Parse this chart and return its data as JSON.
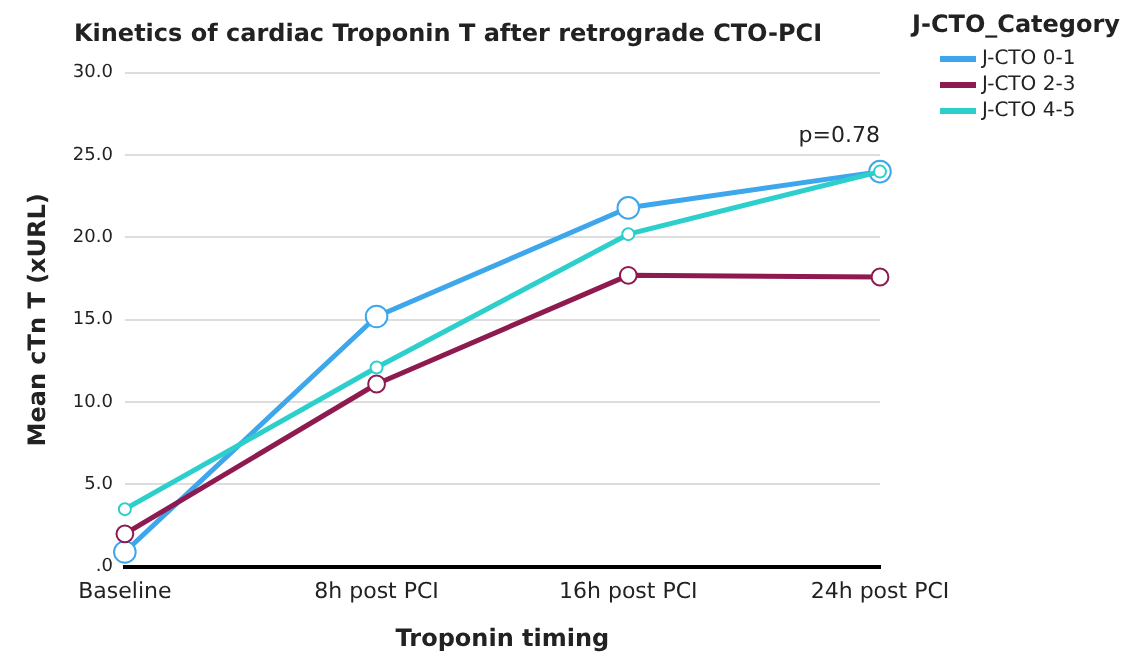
{
  "chart_data": {
    "type": "line",
    "title": "Kinetics of cardiac Troponin T after retrograde CTO-PCI",
    "xlabel": "Troponin timing",
    "ylabel": "Mean cTn T (xURL)",
    "legend_title": "J-CTO_Category",
    "categories": [
      "Baseline",
      "8h post PCI",
      "16h post PCI",
      "24h post PCI"
    ],
    "series": [
      {
        "name": "J-CTO 0-1",
        "color": "#3ea6ea",
        "values": [
          0.9,
          15.2,
          21.8,
          24.0
        ]
      },
      {
        "name": "J-CTO 2-3",
        "color": "#8e1a4f",
        "values": [
          2.0,
          11.1,
          17.7,
          17.6
        ]
      },
      {
        "name": "J-CTO 4-5",
        "color": "#2ccfcc",
        "values": [
          3.5,
          12.1,
          20.2,
          24.0
        ]
      }
    ],
    "ylim": [
      0,
      30
    ],
    "yticks": [
      {
        "value": 0,
        "label": ".0"
      },
      {
        "value": 5,
        "label": "5.0"
      },
      {
        "value": 10,
        "label": "10.0"
      },
      {
        "value": 15,
        "label": "15.0"
      },
      {
        "value": 20,
        "label": "20.0"
      },
      {
        "value": 25,
        "label": "25.0"
      },
      {
        "value": 30,
        "label": "30.0"
      }
    ],
    "grid": "y",
    "legend": "top right",
    "marker": "circle",
    "line_style": "solid",
    "annotations": [
      "p=0.78"
    ]
  }
}
